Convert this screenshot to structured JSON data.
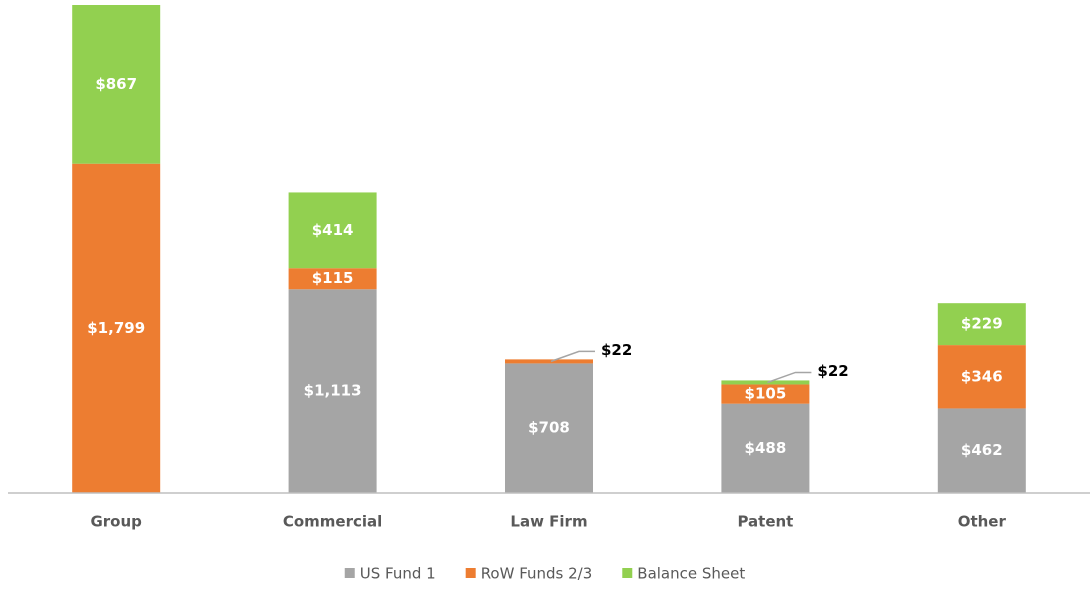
{
  "chart_data": {
    "type": "bar",
    "stacked": true,
    "categories": [
      "Group",
      "Commercial",
      "Law Firm",
      "Patent",
      "Other"
    ],
    "series": [
      {
        "name": "US Fund 1",
        "color": "#a5a5a5",
        "values": [
          null,
          1113,
          708,
          488,
          462
        ],
        "value_labels": [
          null,
          "$1,113",
          "$708",
          "$488",
          "$462"
        ]
      },
      {
        "name": "RoW Funds 2/3",
        "color": "#ed7d31",
        "values": [
          1799,
          115,
          22,
          105,
          346
        ],
        "value_labels": [
          "$1,799",
          "$115",
          "$22",
          "$105",
          "$346"
        ]
      },
      {
        "name": "Balance Sheet",
        "color": "#92d050",
        "values": [
          867,
          414,
          null,
          22,
          229
        ],
        "value_labels": [
          "$867",
          "$414",
          null,
          "$22",
          "$229"
        ]
      }
    ],
    "legend": "bottom"
  }
}
